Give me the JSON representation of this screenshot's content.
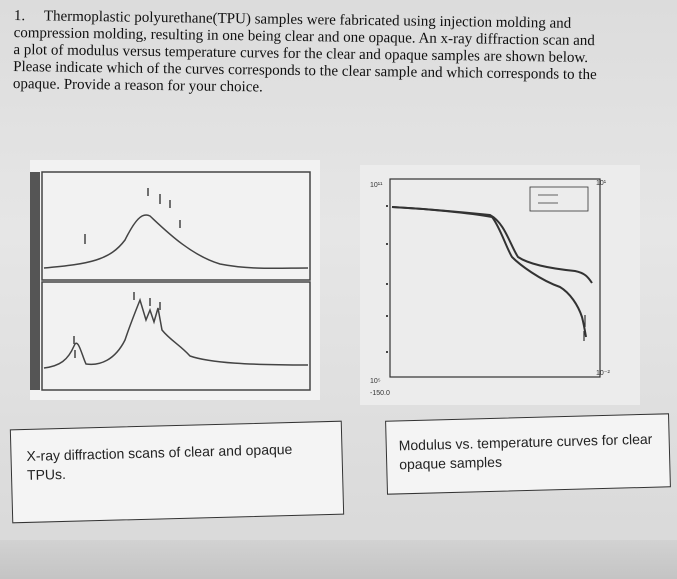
{
  "question": {
    "number": "1.",
    "lines": [
      "Thermoplastic polyurethane(TPU) samples were fabricated using injection molding and",
      "compression molding, resulting in one being clear and one opaque. An x-ray diffraction scan and",
      "a plot of modulus versus temperature curves for the clear and opaque samples are shown below.",
      "Please indicate which of the curves corresponds to the clear sample and which corresponds to the",
      "opaque. Provide a reason for your choice."
    ]
  },
  "captions": {
    "left": "X-ray diffraction scans of clear and opaque TPUs.",
    "right": "Modulus vs. temperature curves for clear opaque samples"
  },
  "modulus_plot": {
    "y_top_label": "10¹¹",
    "y_bottom_label": "10⁵",
    "x_start_label": "-150.0",
    "right_top_label": "10¹",
    "right_bottom_label": "10⁻²"
  },
  "colors": {
    "paper": "#e0e0e0",
    "ink": "#111111",
    "plot_line": "#333333"
  }
}
